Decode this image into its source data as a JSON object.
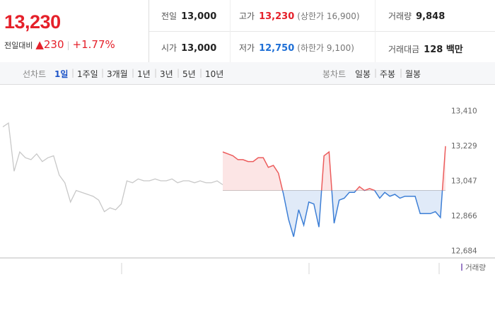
{
  "quote": {
    "price": "13,230",
    "change_label": "전일대비",
    "change": "230",
    "change_rate": "+1.77%",
    "rows": [
      [
        {
          "label": "전일",
          "value": "13,000"
        },
        {
          "label": "고가",
          "value": "13,230",
          "note": "(상한가 16,900)"
        },
        {
          "label": "거래량",
          "value": "9,848"
        }
      ],
      [
        {
          "label": "시가",
          "value": "13,000"
        },
        {
          "label": "저가",
          "value": "12,750",
          "note": "(하한가 9,100)"
        },
        {
          "label": "거래대금",
          "value": "128 백만"
        }
      ]
    ]
  },
  "tabs": {
    "line_label": "선차트",
    "line": [
      "1일",
      "1주일",
      "3개월",
      "1년",
      "3년",
      "5년",
      "10년"
    ],
    "line_selected": 0,
    "candle_label": "봉차트",
    "candle": [
      "일봉",
      "주봉",
      "월봉"
    ]
  },
  "chart_data": {
    "type": "line",
    "ylim": [
      12650,
      13530
    ],
    "yticks": [
      {
        "value": 13410,
        "label": "13,410"
      },
      {
        "value": 13229,
        "label": "13,229"
      },
      {
        "value": 13047,
        "label": "13,047"
      },
      {
        "value": 12866,
        "label": "12,866"
      },
      {
        "value": 12684,
        "label": "12,684"
      }
    ],
    "baseline": 13000,
    "series": [
      {
        "color": "#c8c8c8",
        "values": [
          13330,
          13350,
          13100,
          13200,
          13170,
          13160,
          13190,
          13150,
          13170,
          13180,
          13080,
          13040,
          12940,
          13000,
          12990,
          12980,
          12970,
          12950,
          12890,
          12910,
          12900,
          12930,
          13050,
          13040,
          13060,
          13050,
          13050,
          13060,
          13050,
          13050,
          13060,
          13040,
          13050,
          13050,
          13040,
          13050,
          13040,
          13040,
          13050,
          13030
        ]
      },
      {
        "up_color": "#ec5c5c",
        "down_color": "#3d7fd6",
        "values": [
          13200,
          13190,
          13180,
          13160,
          13160,
          13150,
          13150,
          13170,
          13170,
          13120,
          13130,
          13090,
          12980,
          12850,
          12760,
          12900,
          12820,
          12940,
          12930,
          12810,
          13180,
          13200,
          12830,
          12950,
          12960,
          12990,
          12990,
          13020,
          13000,
          13010,
          13000,
          12960,
          12990,
          12970,
          12980,
          12960,
          12970,
          12970,
          12970,
          12880,
          12880,
          12880,
          12890,
          12860,
          13230
        ]
      }
    ],
    "legend": "거래량",
    "legend_color": "#9b7fc8"
  }
}
